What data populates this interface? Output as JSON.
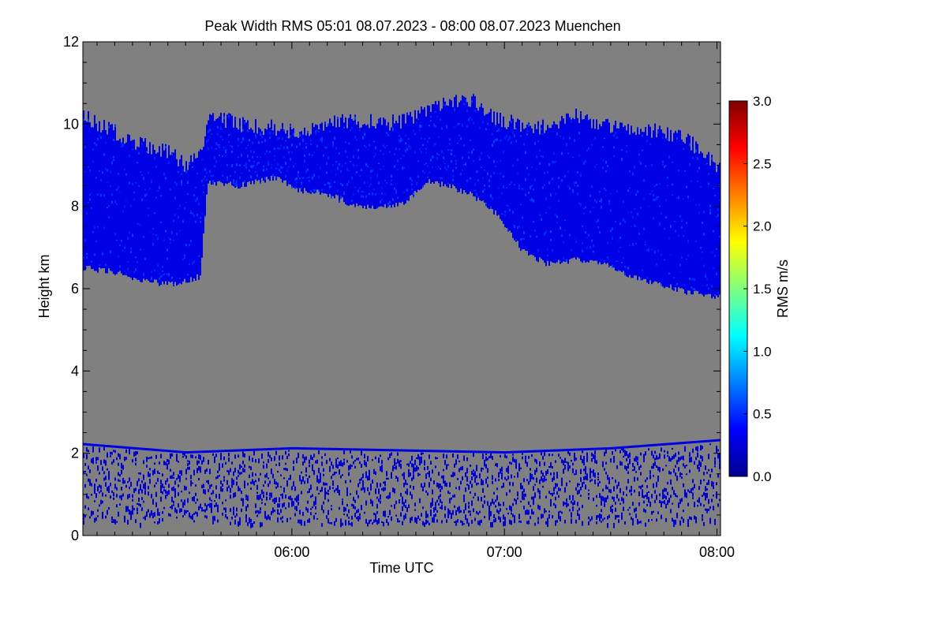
{
  "chart_data": {
    "type": "heatmap",
    "title": "Peak Width RMS   05:01 08.07.2023 - 08:00 08.07.2023 Muenchen",
    "xlabel": "Time UTC",
    "ylabel": "Height km",
    "x_start": "05:01",
    "x_end": "08:00",
    "xlim_minutes_utc": [
      301,
      481
    ],
    "ylim": [
      0,
      12
    ],
    "x_ticks": [
      {
        "minute": 360,
        "label": "06:00"
      },
      {
        "minute": 420,
        "label": "07:00"
      },
      {
        "minute": 480,
        "label": "08:00"
      }
    ],
    "y_ticks": [
      {
        "value": 0,
        "label": "0"
      },
      {
        "value": 2,
        "label": "2"
      },
      {
        "value": 4,
        "label": "4"
      },
      {
        "value": 6,
        "label": "6"
      },
      {
        "value": 8,
        "label": "8"
      },
      {
        "value": 10,
        "label": "10"
      },
      {
        "value": 12,
        "label": "12"
      }
    ],
    "background_color": "#808080",
    "colorbar": {
      "label": "RMS m/s",
      "range": [
        0.0,
        3.0
      ],
      "colormap": "jet",
      "ticks": [
        {
          "value": 0.0,
          "label": "0.0"
        },
        {
          "value": 0.5,
          "label": "0.5"
        },
        {
          "value": 1.0,
          "label": "1.0"
        },
        {
          "value": 1.5,
          "label": "1.5"
        },
        {
          "value": 2.0,
          "label": "2.0"
        },
        {
          "value": 2.5,
          "label": "2.5"
        },
        {
          "value": 3.0,
          "label": "3.0"
        }
      ]
    },
    "cloud_layer": {
      "typical_rms": 0.3,
      "profile": [
        {
          "minute": 301,
          "base": 6.5,
          "top": 10.2
        },
        {
          "minute": 310,
          "base": 6.4,
          "top": 9.8
        },
        {
          "minute": 317,
          "base": 6.2,
          "top": 9.5
        },
        {
          "minute": 326,
          "base": 6.1,
          "top": 9.3
        },
        {
          "minute": 330,
          "base": 6.2,
          "top": 9.0
        },
        {
          "minute": 334,
          "base": 6.3,
          "top": 9.2
        },
        {
          "minute": 336,
          "base": 8.6,
          "top": 10.2
        },
        {
          "minute": 345,
          "base": 8.5,
          "top": 10.0
        },
        {
          "minute": 355,
          "base": 8.7,
          "top": 9.9
        },
        {
          "minute": 362,
          "base": 8.4,
          "top": 9.8
        },
        {
          "minute": 370,
          "base": 8.3,
          "top": 10.0
        },
        {
          "minute": 378,
          "base": 8.0,
          "top": 10.1
        },
        {
          "minute": 386,
          "base": 8.0,
          "top": 10.0
        },
        {
          "minute": 392,
          "base": 8.1,
          "top": 10.1
        },
        {
          "minute": 398,
          "base": 8.6,
          "top": 10.3
        },
        {
          "minute": 404,
          "base": 8.5,
          "top": 10.5
        },
        {
          "minute": 410,
          "base": 8.3,
          "top": 10.6
        },
        {
          "minute": 418,
          "base": 7.8,
          "top": 10.1
        },
        {
          "minute": 425,
          "base": 6.9,
          "top": 10.0
        },
        {
          "minute": 432,
          "base": 6.6,
          "top": 9.9
        },
        {
          "minute": 440,
          "base": 6.7,
          "top": 10.2
        },
        {
          "minute": 448,
          "base": 6.6,
          "top": 10.0
        },
        {
          "minute": 456,
          "base": 6.3,
          "top": 9.9
        },
        {
          "minute": 464,
          "base": 6.1,
          "top": 9.8
        },
        {
          "minute": 472,
          "base": 5.9,
          "top": 9.6
        },
        {
          "minute": 481,
          "base": 5.8,
          "top": 8.9
        }
      ]
    },
    "boundary_layer": {
      "typical_rms": 0.2,
      "top_profile": [
        {
          "minute": 301,
          "top": 2.2
        },
        {
          "minute": 330,
          "top": 2.0
        },
        {
          "minute": 360,
          "top": 2.1
        },
        {
          "minute": 420,
          "top": 2.0
        },
        {
          "minute": 450,
          "top": 2.1
        },
        {
          "minute": 481,
          "top": 2.3
        }
      ],
      "speckle_from": 0.3
    }
  }
}
